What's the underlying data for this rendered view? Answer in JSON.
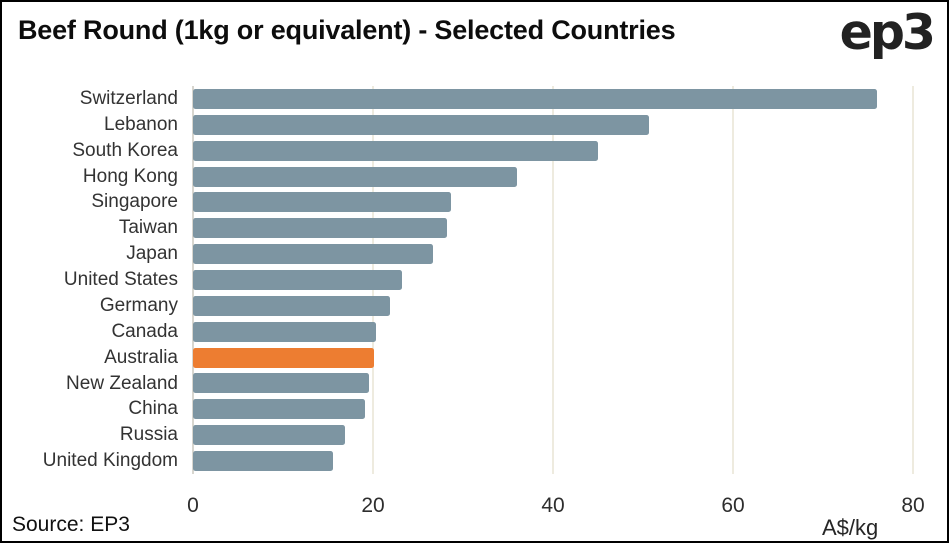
{
  "header": {
    "title": "Beef Round (1kg or equivalent) - Selected Countries",
    "logo_text": "ep3"
  },
  "footer": {
    "source": "Source: EP3",
    "axis_unit": "A$/kg"
  },
  "colors": {
    "bar": "#7D95A2",
    "highlight": "#ED7D31",
    "gridline": "#EEEBDF",
    "zero_line": "#D8D6CF",
    "background": "#FFFFFF",
    "border": "#000000"
  },
  "chart_data": {
    "type": "bar",
    "orientation": "horizontal",
    "title": "Beef Round (1kg or equivalent) - Selected Countries",
    "xlabel": "A$/kg",
    "ylabel": "",
    "xlim": [
      0,
      80
    ],
    "x_ticks": [
      0,
      20,
      40,
      60,
      80
    ],
    "grid": "vertical",
    "legend": false,
    "categories": [
      "Switzerland",
      "Lebanon",
      "South Korea",
      "Hong Kong",
      "Singapore",
      "Taiwan",
      "Japan",
      "United States",
      "Germany",
      "Canada",
      "Australia",
      "New Zealand",
      "China",
      "Russia",
      "United Kingdom"
    ],
    "values": [
      76.0,
      50.7,
      45.0,
      36.0,
      28.7,
      28.2,
      26.7,
      23.2,
      21.9,
      20.3,
      20.1,
      19.5,
      19.1,
      16.9,
      15.5
    ],
    "highlight_category": "Australia"
  }
}
